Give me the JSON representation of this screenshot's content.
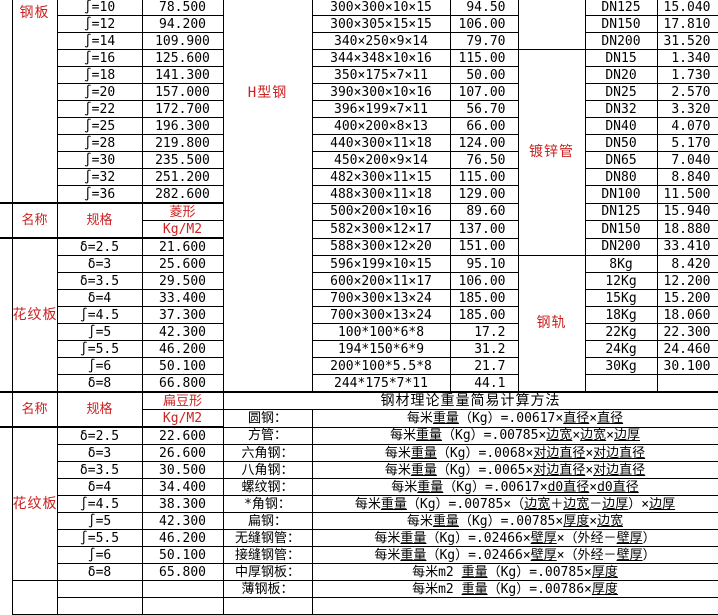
{
  "colors": {
    "accent_red": "#cc2222",
    "grid": "#000000",
    "background": "#ffffff"
  },
  "left": {
    "g1_label": "钢板",
    "g1": [
      {
        "s": "∫=10",
        "v": "78.500"
      },
      {
        "s": "∫=12",
        "v": "94.200"
      },
      {
        "s": "∫=14",
        "v": "109.900"
      },
      {
        "s": "∫=16",
        "v": "125.600"
      },
      {
        "s": "∫=18",
        "v": "141.300"
      },
      {
        "s": "∫=20",
        "v": "157.000"
      },
      {
        "s": "∫=22",
        "v": "172.700"
      },
      {
        "s": "∫=25",
        "v": "196.300"
      },
      {
        "s": "∫=28",
        "v": "219.800"
      },
      {
        "s": "∫=30",
        "v": "235.500"
      },
      {
        "s": "∫=32",
        "v": "251.200"
      },
      {
        "s": "∫=36",
        "v": "282.600"
      }
    ],
    "h1": {
      "name": "名称",
      "spec": "规格",
      "shape": "菱形",
      "unit": "Kg/M2"
    },
    "g2_label": "花纹板",
    "g2": [
      {
        "s": "δ=2.5",
        "v": "21.600"
      },
      {
        "s": "δ=3",
        "v": "25.600"
      },
      {
        "s": "δ=3.5",
        "v": "29.500"
      },
      {
        "s": "δ=4",
        "v": "33.400"
      },
      {
        "s": "∫=4.5",
        "v": "37.300"
      },
      {
        "s": "∫=5",
        "v": "42.300"
      },
      {
        "s": "∫=5.5",
        "v": "46.200"
      },
      {
        "s": "∫=6",
        "v": "50.100"
      },
      {
        "s": "δ=8",
        "v": "66.800"
      }
    ],
    "h2": {
      "name": "名称",
      "spec": "规格",
      "shape": "扁豆形",
      "unit": "Kg/M2"
    },
    "g3_label": "花纹板",
    "g3": [
      {
        "s": "δ=2.5",
        "v": "22.600"
      },
      {
        "s": "δ=3",
        "v": "26.600"
      },
      {
        "s": "δ=3.5",
        "v": "30.500"
      },
      {
        "s": "δ=4",
        "v": "34.400"
      },
      {
        "s": "∫=4.5",
        "v": "38.300"
      },
      {
        "s": "∫=5",
        "v": "42.300"
      },
      {
        "s": "∫=5.5",
        "v": "46.200"
      },
      {
        "s": "∫=6",
        "v": "50.100"
      },
      {
        "s": "δ=8",
        "v": "65.800"
      }
    ]
  },
  "middle": {
    "label": "H型钢",
    "rows": [
      {
        "s": "300×300×10×15",
        "v": "94.50"
      },
      {
        "s": "300×305×15×15",
        "v": "106.00"
      },
      {
        "s": "340×250×9×14",
        "v": "79.70"
      },
      {
        "s": "344×348×10×16",
        "v": "115.00"
      },
      {
        "s": "350×175×7×11",
        "v": "50.00"
      },
      {
        "s": "390×300×10×16",
        "v": "107.00"
      },
      {
        "s": "396×199×7×11",
        "v": "56.70"
      },
      {
        "s": "400×200×8×13",
        "v": "66.00"
      },
      {
        "s": "440×300×11×18",
        "v": "124.00"
      },
      {
        "s": "450×200×9×14",
        "v": "76.50"
      },
      {
        "s": "482×300×11×15",
        "v": "115.00"
      },
      {
        "s": "488×300×11×18",
        "v": "129.00"
      },
      {
        "s": "500×200×10×16",
        "v": "89.60"
      },
      {
        "s": "582×300×12×17",
        "v": "137.00"
      },
      {
        "s": "588×300×12×20",
        "v": "151.00"
      },
      {
        "s": "596×199×10×15",
        "v": "95.10"
      },
      {
        "s": "600×200×11×17",
        "v": "106.00"
      },
      {
        "s": "700×300×13×24",
        "v": "185.00"
      },
      {
        "s": "700×300×13×24",
        "v": "185.00"
      },
      {
        "s": "100*100*6*8",
        "v": "17.2"
      },
      {
        "s": "194*150*6*9",
        "v": "31.2"
      },
      {
        "s": "200*100*5.5*8",
        "v": "21.7"
      },
      {
        "s": "244*175*7*11",
        "v": "44.1"
      }
    ]
  },
  "right": {
    "g1": [
      {
        "s": "DN125",
        "v": "15.040"
      },
      {
        "s": "DN150",
        "v": "17.810"
      },
      {
        "s": "DN200",
        "v": "31.520"
      }
    ],
    "g2_label": "镀锌管",
    "g2": [
      {
        "s": "DN15",
        "v": "1.340"
      },
      {
        "s": "DN20",
        "v": "1.730"
      },
      {
        "s": "DN25",
        "v": "2.570"
      },
      {
        "s": "DN32",
        "v": "3.320"
      },
      {
        "s": "DN40",
        "v": "4.070"
      },
      {
        "s": "DN50",
        "v": "5.170"
      },
      {
        "s": "DN65",
        "v": "7.040"
      },
      {
        "s": "DN80",
        "v": "8.840"
      },
      {
        "s": "DN100",
        "v": "11.500"
      },
      {
        "s": "DN125",
        "v": "15.940"
      },
      {
        "s": "DN150",
        "v": "18.880"
      },
      {
        "s": "DN200",
        "v": "33.410"
      }
    ],
    "g3_label": "钢轨",
    "g3": [
      {
        "s": "8Kg",
        "v": "8.420"
      },
      {
        "s": "12Kg",
        "v": "12.200"
      },
      {
        "s": "15Kg",
        "v": "15.200"
      },
      {
        "s": "18Kg",
        "v": "18.060"
      },
      {
        "s": "22Kg",
        "v": "22.300"
      },
      {
        "s": "24Kg",
        "v": "24.460"
      },
      {
        "s": "30Kg",
        "v": "30.100"
      }
    ]
  },
  "bottom": {
    "title": "钢材理论重量简易计算方法",
    "formulas": [
      {
        "label": "圆钢：",
        "segs": [
          [
            "每米",
            0
          ],
          [
            "重量",
            1
          ],
          [
            "（Kg）=.00617×",
            0
          ],
          [
            "直径",
            1
          ],
          [
            "×",
            0
          ],
          [
            "直径",
            1
          ]
        ]
      },
      {
        "label": "方管：",
        "segs": [
          [
            "每米",
            0
          ],
          [
            "重量",
            1
          ],
          [
            "（Kg）=.00785×",
            0
          ],
          [
            "边宽",
            1
          ],
          [
            "×",
            0
          ],
          [
            "边宽",
            1
          ],
          [
            "×",
            0
          ],
          [
            "边厚",
            1
          ]
        ]
      },
      {
        "label": "六角钢：",
        "segs": [
          [
            "每米",
            0
          ],
          [
            "重量",
            1
          ],
          [
            "（Kg）=.0068×",
            0
          ],
          [
            "对边直径",
            1
          ],
          [
            "×",
            0
          ],
          [
            "对边直径",
            1
          ]
        ]
      },
      {
        "label": "八角钢：",
        "segs": [
          [
            "每米",
            0
          ],
          [
            "重量",
            1
          ],
          [
            "（Kg）=.0065×",
            0
          ],
          [
            "对边直径",
            1
          ],
          [
            "×",
            0
          ],
          [
            "对边直径",
            1
          ]
        ]
      },
      {
        "label": "螺纹钢：",
        "segs": [
          [
            "每米",
            0
          ],
          [
            "重量",
            1
          ],
          [
            "（Kg）=.00617×",
            0
          ],
          [
            "d0直径",
            1
          ],
          [
            "×",
            0
          ],
          [
            "d0直径",
            1
          ]
        ]
      },
      {
        "label": "*角钢：",
        "segs": [
          [
            "每米",
            0
          ],
          [
            "重量",
            1
          ],
          [
            "（Kg）=.00785×（",
            0
          ],
          [
            "边宽",
            1
          ],
          [
            "＋",
            0
          ],
          [
            "边宽",
            1
          ],
          [
            "－",
            0
          ],
          [
            "边厚",
            1
          ],
          [
            "）×",
            0
          ],
          [
            "边厚",
            1
          ]
        ]
      },
      {
        "label": "扁钢：",
        "segs": [
          [
            "每米",
            0
          ],
          [
            "重量",
            1
          ],
          [
            "（Kg）=.00785×",
            0
          ],
          [
            "厚度",
            1
          ],
          [
            "×",
            0
          ],
          [
            "边宽",
            1
          ]
        ]
      },
      {
        "label": "无缝钢管：",
        "segs": [
          [
            "每米",
            0
          ],
          [
            "重量",
            1
          ],
          [
            "（Kg）=.02466×",
            0
          ],
          [
            "壁厚",
            1
          ],
          [
            "×（外经－",
            0
          ],
          [
            "壁厚",
            1
          ],
          [
            "）",
            0
          ]
        ]
      },
      {
        "label": "接缝钢管：",
        "segs": [
          [
            "每米",
            0
          ],
          [
            "重量",
            1
          ],
          [
            "（Kg）=.02466×",
            0
          ],
          [
            "壁厚",
            1
          ],
          [
            "×（外经－",
            0
          ],
          [
            "壁厚",
            1
          ],
          [
            "）",
            0
          ]
        ]
      },
      {
        "label": "中厚钢板：",
        "segs": [
          [
            "每米m2 ",
            0
          ],
          [
            "重量",
            1
          ],
          [
            "（Kg）=.00785×",
            0
          ],
          [
            "厚度",
            1
          ]
        ]
      },
      {
        "label": "薄钢板：",
        "segs": [
          [
            "每米m2 ",
            0
          ],
          [
            "重量",
            1
          ],
          [
            "（Kg）=.00786×",
            0
          ],
          [
            "厚度",
            1
          ]
        ]
      }
    ]
  }
}
